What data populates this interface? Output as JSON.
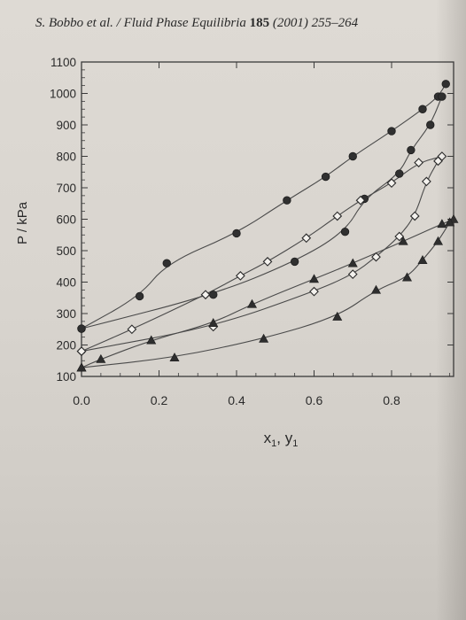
{
  "header": {
    "authors": "S. Bobbo et al.",
    "journal": "/ Fluid Phase Equilibria",
    "volume": "185",
    "year_pages": "(2001) 255–264"
  },
  "chart_data": {
    "type": "scatter",
    "xlabel": "x1, y1",
    "ylabel": "P / kPa",
    "xlim": [
      0.0,
      0.96
    ],
    "ylim": [
      100,
      1100
    ],
    "xticks": [
      "0.0",
      "0.2",
      "0.4",
      "0.6",
      "0.8"
    ],
    "xtick_values": [
      0.0,
      0.2,
      0.4,
      0.6,
      0.8
    ],
    "yticks": [
      "100",
      "200",
      "300",
      "400",
      "500",
      "600",
      "700",
      "800",
      "900",
      "1000",
      "1100"
    ],
    "ytick_values": [
      100,
      200,
      300,
      400,
      500,
      600,
      700,
      800,
      900,
      1000,
      1100
    ],
    "grid": false,
    "series": [
      {
        "marker": "filled-circle",
        "kind": "bubble-line",
        "x": [
          0.0,
          0.15,
          0.22,
          0.4,
          0.53,
          0.63,
          0.7,
          0.8,
          0.88,
          0.92,
          0.94
        ],
        "y": [
          252,
          355,
          460,
          555,
          660,
          735,
          800,
          880,
          950,
          990,
          1030
        ]
      },
      {
        "marker": "filled-circle",
        "kind": "dew-line",
        "x": [
          0.0,
          0.34,
          0.55,
          0.68,
          0.73,
          0.82,
          0.85,
          0.9,
          0.93
        ],
        "y": [
          252,
          360,
          465,
          560,
          665,
          745,
          820,
          900,
          990
        ]
      },
      {
        "marker": "open-diamond",
        "kind": "bubble-line",
        "x": [
          0.0,
          0.13,
          0.32,
          0.41,
          0.48,
          0.58,
          0.66,
          0.72,
          0.8,
          0.87,
          0.93
        ],
        "y": [
          180,
          250,
          360,
          420,
          465,
          540,
          610,
          660,
          715,
          780,
          800
        ]
      },
      {
        "marker": "open-diamond",
        "kind": "dew-line",
        "x": [
          0.0,
          0.34,
          0.6,
          0.7,
          0.76,
          0.82,
          0.86,
          0.89,
          0.92
        ],
        "y": [
          180,
          258,
          370,
          425,
          480,
          545,
          610,
          720,
          785
        ]
      },
      {
        "marker": "filled-triangle",
        "kind": "bubble-line",
        "x": [
          0.0,
          0.05,
          0.18,
          0.34,
          0.44,
          0.6,
          0.7,
          0.83,
          0.93,
          0.96
        ],
        "y": [
          128,
          155,
          215,
          270,
          330,
          410,
          460,
          530,
          585,
          600
        ]
      },
      {
        "marker": "filled-triangle",
        "kind": "dew-line",
        "x": [
          0.0,
          0.24,
          0.47,
          0.66,
          0.76,
          0.84,
          0.88,
          0.92,
          0.95
        ],
        "y": [
          128,
          160,
          220,
          290,
          375,
          415,
          470,
          530,
          590
        ]
      }
    ]
  }
}
